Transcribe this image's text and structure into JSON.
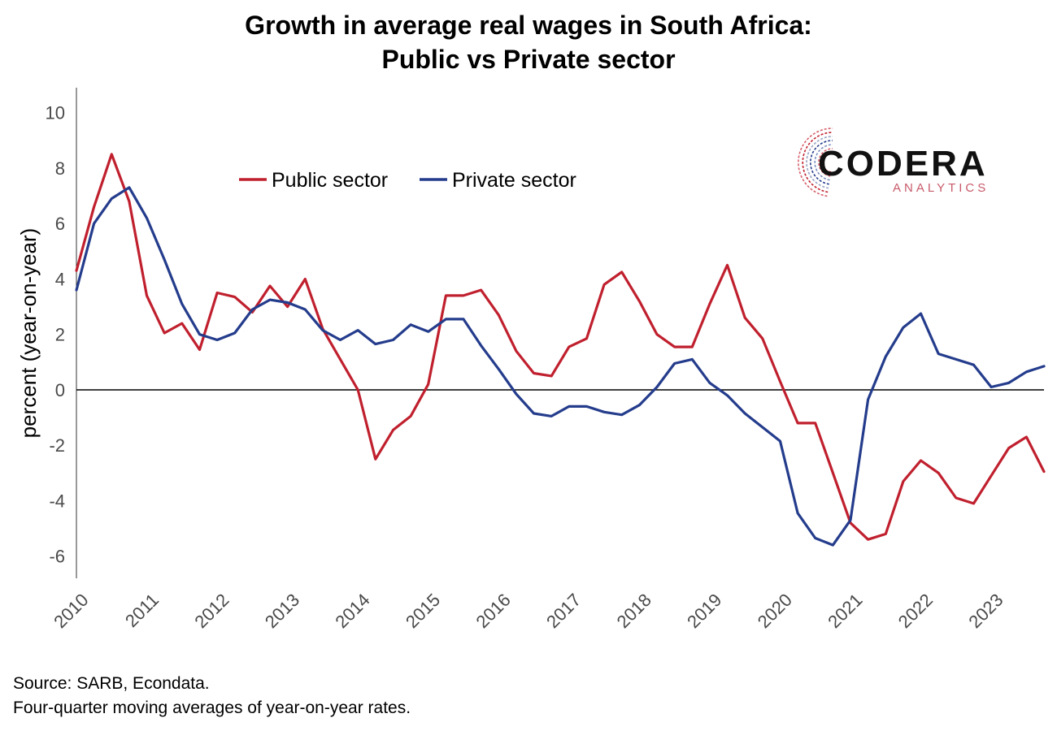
{
  "chart_data": {
    "type": "line",
    "title": [
      "Growth in average real wages in South Africa:",
      "Public vs Private sector"
    ],
    "ylabel": "percent (year-on-year)",
    "xlabel": "",
    "ylim": [
      -6.8,
      10.9
    ],
    "yticks": [
      10,
      8,
      6,
      4,
      2,
      0,
      -2,
      -4,
      -6
    ],
    "xlim": [
      2010.0,
      2023.75
    ],
    "xticks": [
      "2010",
      "2011",
      "2012",
      "2013",
      "2014",
      "2015",
      "2016",
      "2017",
      "2018",
      "2019",
      "2020",
      "2021",
      "2022",
      "2023"
    ],
    "zero_line": true,
    "grid": false,
    "legend_position": "top-left",
    "series": [
      {
        "name": "Public sector",
        "color": "#c0202e",
        "x": [
          2010.0,
          2010.25,
          2010.5,
          2010.75,
          2011.0,
          2011.25,
          2011.5,
          2011.75,
          2012.0,
          2012.25,
          2012.5,
          2012.75,
          2013.0,
          2013.25,
          2013.5,
          2013.75,
          2014.0,
          2014.25,
          2014.5,
          2014.75,
          2015.0,
          2015.25,
          2015.5,
          2015.75,
          2016.0,
          2016.25,
          2016.5,
          2016.75,
          2017.0,
          2017.25,
          2017.5,
          2017.75,
          2018.0,
          2018.25,
          2018.5,
          2018.75,
          2019.0,
          2019.25,
          2019.5,
          2019.75,
          2020.0,
          2020.25,
          2020.5,
          2020.75,
          2021.0,
          2021.25,
          2021.5,
          2021.75,
          2022.0,
          2022.25,
          2022.5,
          2022.75,
          2023.0,
          2023.25,
          2023.5,
          2023.75
        ],
        "values": [
          4.3,
          6.6,
          8.5,
          6.8,
          3.4,
          2.05,
          2.4,
          1.45,
          3.5,
          3.35,
          2.8,
          3.75,
          3.0,
          4.0,
          2.2,
          1.1,
          0.0,
          -2.5,
          -1.45,
          -0.95,
          0.2,
          3.4,
          3.4,
          3.6,
          2.7,
          1.4,
          0.6,
          0.5,
          1.55,
          1.85,
          3.8,
          4.25,
          3.2,
          2.0,
          1.55,
          1.55,
          3.1,
          4.5,
          2.6,
          1.85,
          0.3,
          -1.2,
          -1.2,
          -3.0,
          -4.8,
          -5.4,
          -5.2,
          -3.3,
          -2.55,
          -3.0,
          -3.9,
          -4.1,
          -3.1,
          -2.1,
          -1.7,
          -2.95
        ]
      },
      {
        "name": "Private sector",
        "color": "#243c8c",
        "x": [
          2010.0,
          2010.25,
          2010.5,
          2010.75,
          2011.0,
          2011.25,
          2011.5,
          2011.75,
          2012.0,
          2012.25,
          2012.5,
          2012.75,
          2013.0,
          2013.25,
          2013.5,
          2013.75,
          2014.0,
          2014.25,
          2014.5,
          2014.75,
          2015.0,
          2015.25,
          2015.5,
          2015.75,
          2016.0,
          2016.25,
          2016.5,
          2016.75,
          2017.0,
          2017.25,
          2017.5,
          2017.75,
          2018.0,
          2018.25,
          2018.5,
          2018.75,
          2019.0,
          2019.25,
          2019.5,
          2019.75,
          2020.0,
          2020.25,
          2020.5,
          2020.75,
          2021.0,
          2021.25,
          2021.5,
          2021.75,
          2022.0,
          2022.25,
          2022.5,
          2022.75,
          2023.0,
          2023.25,
          2023.5,
          2023.75
        ],
        "values": [
          3.6,
          6.0,
          6.9,
          7.3,
          6.2,
          4.7,
          3.1,
          2.0,
          1.8,
          2.05,
          2.9,
          3.25,
          3.15,
          2.9,
          2.15,
          1.8,
          2.15,
          1.65,
          1.8,
          2.35,
          2.1,
          2.55,
          2.55,
          1.6,
          0.75,
          -0.15,
          -0.85,
          -0.95,
          -0.6,
          -0.6,
          -0.8,
          -0.9,
          -0.55,
          0.1,
          0.95,
          1.1,
          0.25,
          -0.2,
          -0.85,
          -1.35,
          -1.85,
          -4.45,
          -5.35,
          -5.6,
          -4.7,
          -0.35,
          1.2,
          2.25,
          2.75,
          1.3,
          1.1,
          0.9,
          0.1,
          0.25,
          0.65,
          0.85
        ]
      }
    ]
  },
  "logo": {
    "name": "CODERA",
    "tagline": "ANALYTICS"
  },
  "footnotes": {
    "source": "Source: SARB, Econdata.",
    "note": "Four-quarter moving averages of year-on-year rates."
  }
}
